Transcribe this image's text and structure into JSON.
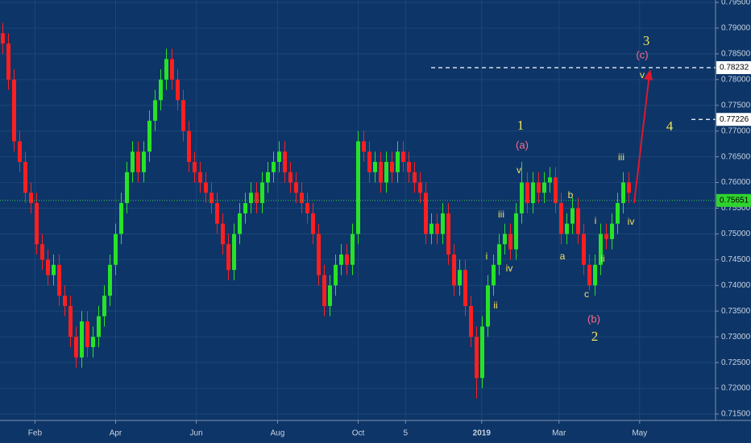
{
  "chart_data": {
    "type": "candlestick",
    "open": [
      0.789,
      0.787,
      0.78,
      0.768,
      0.764,
      0.758,
      0.756,
      0.748,
      0.745,
      0.742,
      0.744,
      0.738,
      0.736,
      0.73,
      0.726,
      0.733,
      0.728,
      0.73,
      0.734,
      0.738,
      0.744,
      0.75,
      0.756,
      0.762,
      0.766,
      0.762,
      0.766,
      0.772,
      0.776,
      0.78,
      0.784,
      0.78,
      0.776,
      0.77,
      0.764,
      0.762,
      0.76,
      0.758,
      0.756,
      0.752,
      0.748,
      0.743,
      0.75,
      0.754,
      0.756,
      0.758,
      0.756,
      0.76,
      0.762,
      0.764,
      0.766,
      0.762,
      0.76,
      0.758,
      0.756,
      0.754,
      0.75,
      0.742,
      0.736,
      0.74,
      0.744,
      0.746,
      0.744,
      0.75,
      0.768,
      0.766,
      0.762,
      0.764,
      0.76,
      0.764,
      0.762,
      0.766,
      0.764,
      0.762,
      0.76,
      0.758,
      0.75,
      0.752,
      0.75,
      0.754,
      0.746,
      0.74,
      0.743,
      0.736,
      0.73,
      0.722,
      0.732,
      0.74,
      0.744,
      0.748,
      0.75,
      0.747,
      0.754,
      0.76,
      0.756,
      0.76,
      0.758,
      0.76,
      0.761,
      0.756,
      0.75,
      0.752,
      0.755,
      0.75,
      0.744,
      0.74,
      0.744,
      0.75,
      0.749,
      0.752,
      0.756,
      0.76
    ],
    "high": [
      0.791,
      0.789,
      0.782,
      0.77,
      0.766,
      0.76,
      0.758,
      0.75,
      0.747,
      0.746,
      0.746,
      0.74,
      0.738,
      0.732,
      0.735,
      0.735,
      0.732,
      0.736,
      0.74,
      0.746,
      0.752,
      0.758,
      0.764,
      0.768,
      0.768,
      0.768,
      0.774,
      0.778,
      0.782,
      0.786,
      0.786,
      0.782,
      0.778,
      0.772,
      0.766,
      0.764,
      0.762,
      0.76,
      0.758,
      0.754,
      0.75,
      0.752,
      0.756,
      0.758,
      0.76,
      0.76,
      0.762,
      0.764,
      0.766,
      0.768,
      0.768,
      0.764,
      0.762,
      0.76,
      0.758,
      0.756,
      0.752,
      0.744,
      0.742,
      0.746,
      0.748,
      0.748,
      0.752,
      0.77,
      0.77,
      0.768,
      0.766,
      0.766,
      0.766,
      0.766,
      0.768,
      0.768,
      0.766,
      0.764,
      0.762,
      0.76,
      0.754,
      0.754,
      0.756,
      0.756,
      0.748,
      0.745,
      0.745,
      0.738,
      0.732,
      0.734,
      0.742,
      0.746,
      0.75,
      0.752,
      0.752,
      0.756,
      0.764,
      0.762,
      0.762,
      0.762,
      0.762,
      0.763,
      0.763,
      0.758,
      0.754,
      0.757,
      0.757,
      0.752,
      0.746,
      0.746,
      0.752,
      0.752,
      0.754,
      0.758,
      0.762,
      0.762
    ],
    "low": [
      0.785,
      0.778,
      0.766,
      0.762,
      0.756,
      0.754,
      0.746,
      0.743,
      0.74,
      0.74,
      0.736,
      0.734,
      0.728,
      0.724,
      0.724,
      0.726,
      0.726,
      0.728,
      0.732,
      0.736,
      0.742,
      0.748,
      0.754,
      0.76,
      0.76,
      0.76,
      0.764,
      0.77,
      0.774,
      0.778,
      0.778,
      0.774,
      0.768,
      0.762,
      0.76,
      0.758,
      0.756,
      0.754,
      0.75,
      0.746,
      0.741,
      0.741,
      0.748,
      0.752,
      0.754,
      0.754,
      0.754,
      0.758,
      0.76,
      0.762,
      0.76,
      0.758,
      0.756,
      0.754,
      0.752,
      0.748,
      0.74,
      0.734,
      0.734,
      0.738,
      0.742,
      0.742,
      0.742,
      0.748,
      0.764,
      0.76,
      0.76,
      0.758,
      0.758,
      0.76,
      0.76,
      0.762,
      0.76,
      0.758,
      0.756,
      0.748,
      0.748,
      0.748,
      0.748,
      0.744,
      0.738,
      0.738,
      0.734,
      0.728,
      0.718,
      0.72,
      0.73,
      0.738,
      0.742,
      0.746,
      0.745,
      0.745,
      0.752,
      0.754,
      0.754,
      0.756,
      0.756,
      0.758,
      0.754,
      0.748,
      0.748,
      0.75,
      0.748,
      0.742,
      0.739,
      0.738,
      0.742,
      0.747,
      0.747,
      0.75,
      0.754,
      0.756
    ],
    "close": [
      0.787,
      0.78,
      0.768,
      0.764,
      0.758,
      0.756,
      0.748,
      0.745,
      0.742,
      0.744,
      0.738,
      0.736,
      0.73,
      0.726,
      0.733,
      0.728,
      0.73,
      0.734,
      0.738,
      0.744,
      0.75,
      0.756,
      0.762,
      0.766,
      0.762,
      0.766,
      0.772,
      0.776,
      0.78,
      0.784,
      0.78,
      0.776,
      0.77,
      0.764,
      0.762,
      0.76,
      0.758,
      0.756,
      0.752,
      0.748,
      0.743,
      0.75,
      0.754,
      0.756,
      0.758,
      0.756,
      0.76,
      0.762,
      0.764,
      0.766,
      0.762,
      0.76,
      0.758,
      0.756,
      0.754,
      0.75,
      0.742,
      0.736,
      0.74,
      0.744,
      0.746,
      0.744,
      0.75,
      0.768,
      0.766,
      0.762,
      0.764,
      0.76,
      0.764,
      0.762,
      0.766,
      0.764,
      0.762,
      0.76,
      0.758,
      0.75,
      0.752,
      0.75,
      0.754,
      0.746,
      0.74,
      0.743,
      0.736,
      0.73,
      0.722,
      0.732,
      0.74,
      0.744,
      0.748,
      0.75,
      0.747,
      0.754,
      0.76,
      0.756,
      0.76,
      0.758,
      0.76,
      0.761,
      0.756,
      0.75,
      0.752,
      0.755,
      0.75,
      0.744,
      0.74,
      0.744,
      0.75,
      0.749,
      0.752,
      0.756,
      0.76,
      0.758
    ],
    "up_color": "#27e327",
    "down_color": "#ff1f1f",
    "xlim": [
      -0.5,
      126.36
    ],
    "xticks": [
      {
        "value": 5.7,
        "label": "Feb"
      },
      {
        "value": 20,
        "label": "Apr"
      },
      {
        "value": 34.3,
        "label": "Jun"
      },
      {
        "value": 48.7,
        "label": "Aug"
      },
      {
        "value": 63,
        "label": "Oct"
      },
      {
        "value": 71.4,
        "label": "5"
      },
      {
        "value": 84.9,
        "label": "2019"
      },
      {
        "value": 98.6,
        "label": "Mar"
      },
      {
        "value": 112.9,
        "label": "May"
      }
    ],
    "ylim": [
      0.715,
      0.795
    ],
    "yticks": [
      {
        "value": 0.715,
        "label": "0.71500"
      },
      {
        "value": 0.72,
        "label": "0.72000"
      },
      {
        "value": 0.725,
        "label": "0.72500"
      },
      {
        "value": 0.73,
        "label": "0.73000"
      },
      {
        "value": 0.735,
        "label": "0.73500"
      },
      {
        "value": 0.74,
        "label": "0.74000"
      },
      {
        "value": 0.745,
        "label": "0.74500"
      },
      {
        "value": 0.75,
        "label": "0.75000"
      },
      {
        "value": 0.755,
        "label": "0.75500"
      },
      {
        "value": 0.76,
        "label": "0.76000"
      },
      {
        "value": 0.765,
        "label": "0.76500"
      },
      {
        "value": 0.77,
        "label": "0.77000"
      },
      {
        "value": 0.775,
        "label": "0.77500"
      },
      {
        "value": 0.78,
        "label": "0.78000"
      },
      {
        "value": 0.785,
        "label": "0.78500"
      },
      {
        "value": 0.79,
        "label": "0.79000"
      },
      {
        "value": 0.795,
        "label": "0.79500"
      }
    ],
    "levels": [
      0.78232,
      0.77226
    ],
    "last_price": 0.75651,
    "annotations": [
      "3",
      "(c)",
      "v",
      "4",
      "1",
      "(a)",
      "v",
      "iii",
      "i",
      "iv",
      "ii",
      "a",
      "b",
      "c",
      "(b)",
      "2",
      "i",
      "ii",
      "iii",
      "iv"
    ]
  }
}
